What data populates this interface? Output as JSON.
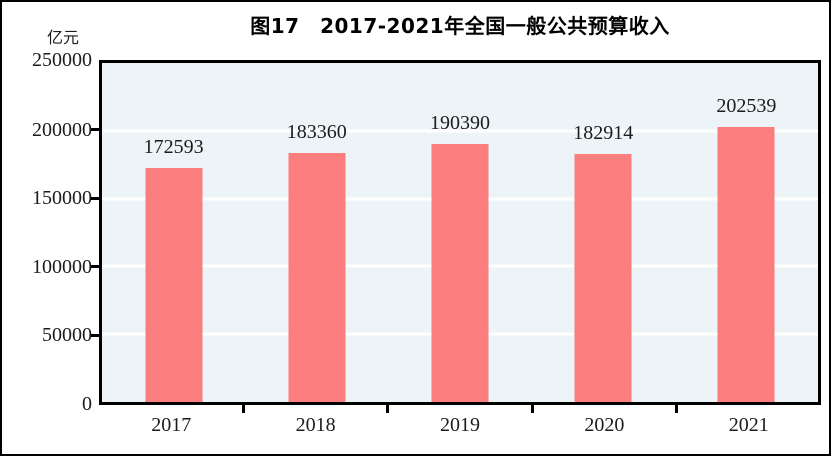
{
  "figure": {
    "title": "图17　2017-2021年全国一般公共预算收入",
    "unit_label": "亿元"
  },
  "chart_data": {
    "type": "bar",
    "title": "图17　2017-2021年全国一般公共预算收入",
    "ylabel": "亿元",
    "categories": [
      "2017",
      "2018",
      "2019",
      "2020",
      "2021"
    ],
    "values": [
      172593,
      183360,
      190390,
      182914,
      202539
    ],
    "ylim": [
      0,
      250000
    ],
    "yticks": [
      0,
      50000,
      100000,
      150000,
      200000,
      250000
    ],
    "grid": "horizontal",
    "legend_position": "none",
    "colors": {
      "bar": "#FB7D7D",
      "plot_background": "#EDF4F7",
      "gridline": "#FFFFFF",
      "axis_border": "#000000",
      "text": "#1c1c1c"
    }
  }
}
